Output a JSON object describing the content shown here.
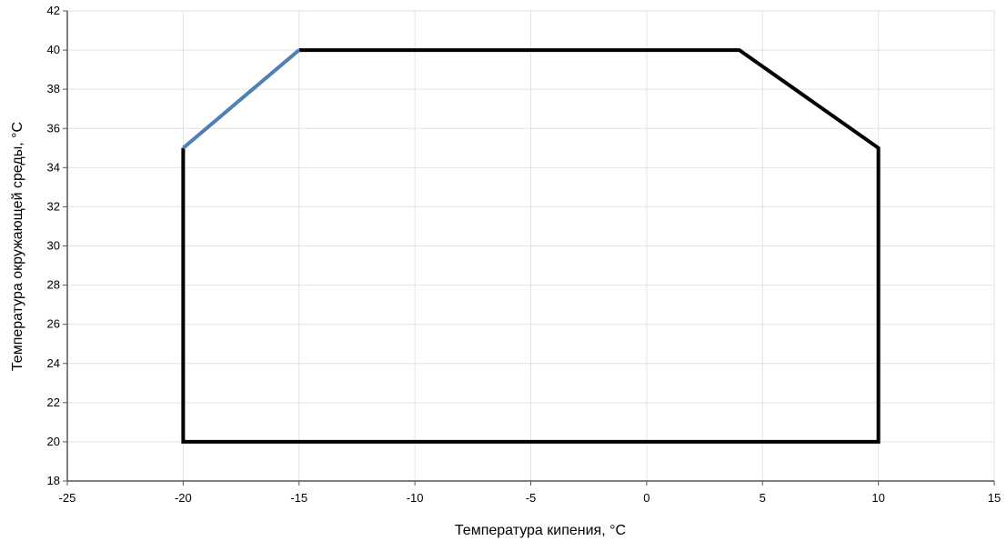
{
  "chart_data": {
    "type": "line",
    "xlabel": "Температура кипения, °С",
    "ylabel": "Температура окружающей среды, °С",
    "xlim": [
      -25,
      15
    ],
    "ylim": [
      18,
      42
    ],
    "x_ticks": [
      -25,
      -20,
      -15,
      -10,
      -5,
      0,
      5,
      10,
      15
    ],
    "y_ticks": [
      18,
      20,
      22,
      24,
      26,
      28,
      30,
      32,
      34,
      36,
      38,
      40,
      42
    ],
    "grid": true,
    "series": [
      {
        "color": "#000000",
        "points": [
          {
            "x": -15,
            "y": 40
          },
          {
            "x": 4,
            "y": 40
          },
          {
            "x": 10,
            "y": 35
          },
          {
            "x": 10,
            "y": 20
          },
          {
            "x": -20,
            "y": 20
          },
          {
            "x": -20,
            "y": 35
          }
        ]
      },
      {
        "color": "#4f7fb8",
        "points": [
          {
            "x": -20,
            "y": 35
          },
          {
            "x": -15,
            "y": 40
          }
        ]
      }
    ]
  }
}
